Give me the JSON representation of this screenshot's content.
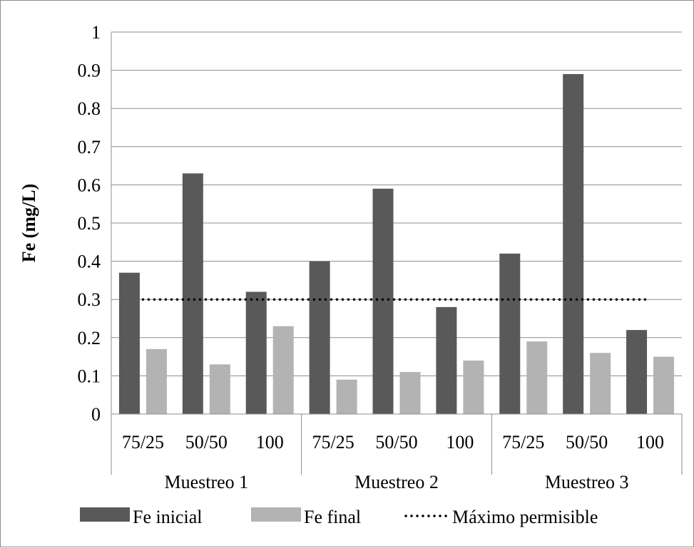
{
  "chart_data": {
    "type": "bar",
    "title": "",
    "xlabel": "",
    "ylabel": "Fe (mg/L)",
    "ylim": [
      0,
      1
    ],
    "yticks": [
      "0",
      "0.1",
      "0.2",
      "0.3",
      "0.4",
      "0.5",
      "0.6",
      "0.7",
      "0.8",
      "0.9",
      "1"
    ],
    "grid": true,
    "legend_position": "bottom",
    "groups": [
      {
        "label": "Muestreo 1",
        "categories": [
          "75/25",
          "50/50",
          "100"
        ]
      },
      {
        "label": "Muestreo 2",
        "categories": [
          "75/25",
          "50/50",
          "100"
        ]
      },
      {
        "label": "Muestreo 3",
        "categories": [
          "75/25",
          "50/50",
          "100"
        ]
      }
    ],
    "categories": [
      "75/25",
      "50/50",
      "100",
      "75/25",
      "50/50",
      "100",
      "75/25",
      "50/50",
      "100"
    ],
    "series": [
      {
        "name": "Fe inicial",
        "type": "bar",
        "color": "#595959",
        "values": [
          0.37,
          0.63,
          0.32,
          0.4,
          0.59,
          0.28,
          0.42,
          0.89,
          0.22
        ]
      },
      {
        "name": "Fe final",
        "type": "bar",
        "color": "#b3b3b3",
        "values": [
          0.17,
          0.13,
          0.23,
          0.09,
          0.11,
          0.14,
          0.19,
          0.16,
          0.15
        ]
      },
      {
        "name": "Máximo permisible",
        "type": "line",
        "style": "dotted",
        "color": "#000000",
        "values": [
          0.3,
          0.3,
          0.3,
          0.3,
          0.3,
          0.3,
          0.3,
          0.3,
          0.3
        ]
      }
    ]
  }
}
